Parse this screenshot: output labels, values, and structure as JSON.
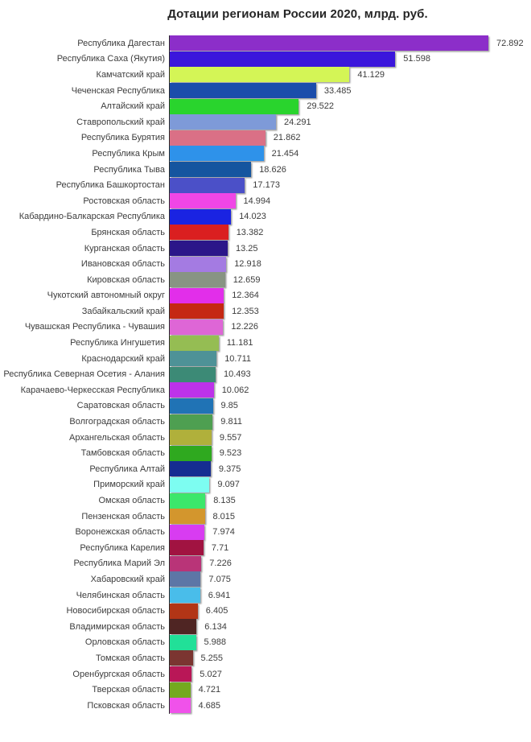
{
  "title": "Дотации регионам России 2020, млрд. руб.",
  "chart_data": {
    "type": "bar",
    "orientation": "horizontal",
    "title": "Дотации регионам России 2020, млрд. руб.",
    "unit": "млрд. руб.",
    "xlim": [
      0,
      73
    ],
    "grid": false,
    "legend": "none",
    "categories": [
      "Республика Дагестан",
      "Республика Саха (Якутия)",
      "Камчатский край",
      "Чеченская Республика",
      "Алтайский край",
      "Ставропольский край",
      "Республика Бурятия",
      "Республика Крым",
      "Республика Тыва",
      "Республика Башкортостан",
      "Ростовская область",
      "Кабардино-Балкарская Республика",
      "Брянская область",
      "Курганская область",
      "Ивановская область",
      "Кировская область",
      "Чукотский автономный округ",
      "Забайкальский край",
      "Чувашская Республика - Чувашия",
      "Республика Ингушетия",
      "Краснодарский край",
      "Республика Северная Осетия - Алания",
      "Карачаево-Черкесская Республика",
      "Саратовская область",
      "Волгоградская область",
      "Архангельская область",
      "Тамбовская область",
      "Республика Алтай",
      "Приморский край",
      "Омская область",
      "Пензенская область",
      "Воронежская область",
      "Республика Карелия",
      "Республика Марий Эл",
      "Хабаровский край",
      "Челябинская область",
      "Новосибирская область",
      "Владимирская область",
      "Орловская область",
      "Томская область",
      "Оренбургская область",
      "Тверская область",
      "Псковская область"
    ],
    "values": [
      72.892,
      51.598,
      41.129,
      33.485,
      29.522,
      24.291,
      21.862,
      21.454,
      18.626,
      17.173,
      14.994,
      14.023,
      13.382,
      13.25,
      12.918,
      12.659,
      12.364,
      12.353,
      12.226,
      11.181,
      10.711,
      10.493,
      10.062,
      9.85,
      9.811,
      9.557,
      9.523,
      9.375,
      9.097,
      8.135,
      8.015,
      7.974,
      7.71,
      7.226,
      7.075,
      6.941,
      6.405,
      6.134,
      5.988,
      5.255,
      5.027,
      4.721,
      4.685
    ],
    "bar_colors": [
      "#8c2ec9",
      "#3b16dc",
      "#d4f556",
      "#1b4dab",
      "#29d42d",
      "#7e9ad8",
      "#da7086",
      "#2e92ea",
      "#15559f",
      "#4b50c8",
      "#f046e6",
      "#1a23e2",
      "#da1f20",
      "#2b1689",
      "#a47be2",
      "#889483",
      "#e22eea",
      "#c52813",
      "#de66d6",
      "#95bd53",
      "#4e9297",
      "#3c8a76",
      "#bd32ea",
      "#2073b5",
      "#4e9f51",
      "#b0b03b",
      "#2fa91f",
      "#152d91",
      "#7dfdf1",
      "#3ce76b",
      "#d3962d",
      "#d83cf1",
      "#a11341",
      "#b93478",
      "#5d76a6",
      "#49bdea",
      "#b23516",
      "#4f2523",
      "#21e098",
      "#7b3531",
      "#b91757",
      "#74a91f",
      "#f052ea"
    ],
    "label_color": "#3c3c3c",
    "title_color": "#262626",
    "axis_line_color": "#2b2b2b"
  }
}
